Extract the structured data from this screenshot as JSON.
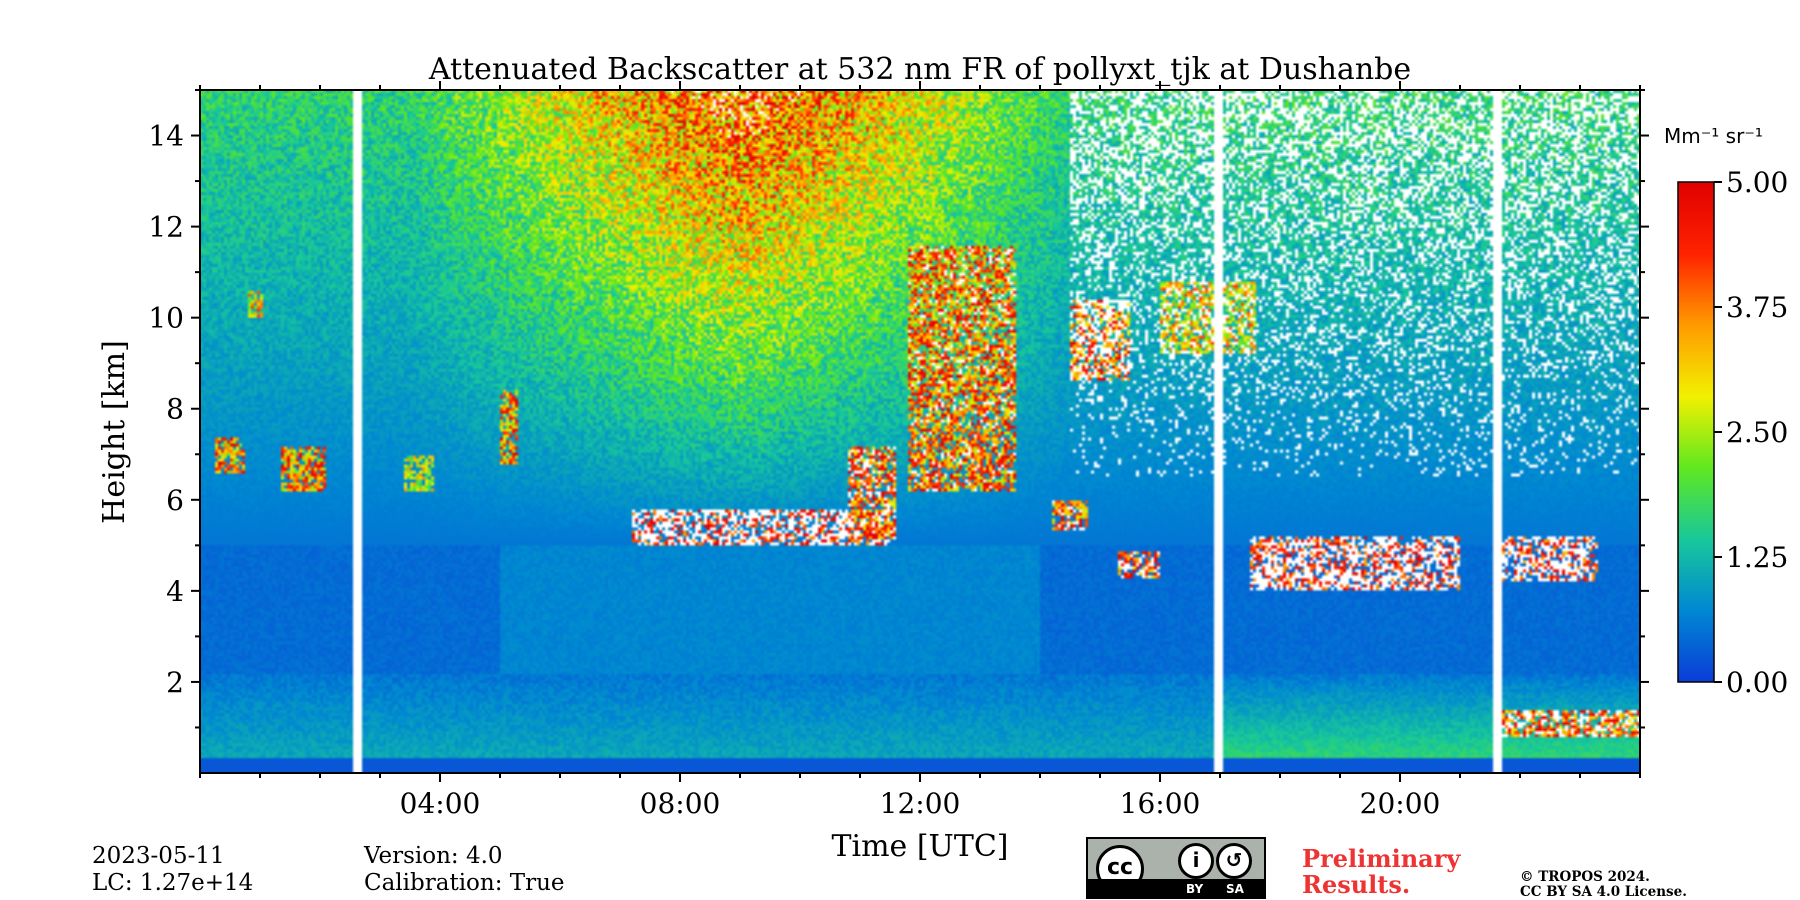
{
  "chart_data": {
    "type": "heatmap",
    "title": "Attenuated Backscatter at 532 nm FR of pollyxt_tjk at Dushanbe",
    "xlabel": "Time [UTC]",
    "ylabel": "Height [km]",
    "x_range_hours": [
      0,
      24
    ],
    "ylim_km": [
      0,
      15
    ],
    "x_ticks": [
      {
        "value": 4,
        "label": "04:00"
      },
      {
        "value": 8,
        "label": "08:00"
      },
      {
        "value": 12,
        "label": "12:00"
      },
      {
        "value": 16,
        "label": "16:00"
      },
      {
        "value": 20,
        "label": "20:00"
      }
    ],
    "y_ticks": [
      {
        "value": 2,
        "label": "2"
      },
      {
        "value": 4,
        "label": "4"
      },
      {
        "value": 6,
        "label": "6"
      },
      {
        "value": 8,
        "label": "8"
      },
      {
        "value": 10,
        "label": "10"
      },
      {
        "value": 12,
        "label": "12"
      },
      {
        "value": 14,
        "label": "14"
      }
    ],
    "colorbar": {
      "unit": "Mm⁻¹ sr⁻¹",
      "range": [
        0,
        5
      ],
      "ticks": [
        {
          "value": 0.0,
          "label": "0.00"
        },
        {
          "value": 1.25,
          "label": "1.25"
        },
        {
          "value": 2.5,
          "label": "2.50"
        },
        {
          "value": 3.75,
          "label": "3.75"
        },
        {
          "value": 5.0,
          "label": "5.00"
        }
      ],
      "colors": [
        "#0a3cd8",
        "#0088d2",
        "#18c89a",
        "#60e820",
        "#f2f000",
        "#ff9a00",
        "#ff2200",
        "#e00000"
      ]
    },
    "data_gaps_hours": [
      [
        2.55,
        2.72
      ],
      [
        16.9,
        17.05
      ],
      [
        21.55,
        21.7
      ]
    ],
    "cloud_layers": [
      {
        "start_h": 0.25,
        "end_h": 0.75,
        "base_km": 6.6,
        "top_km": 7.4,
        "value": 3.6
      },
      {
        "start_h": 1.35,
        "end_h": 2.1,
        "base_km": 6.2,
        "top_km": 7.2,
        "value": 3.6
      },
      {
        "start_h": 0.8,
        "end_h": 1.05,
        "base_km": 10.0,
        "top_km": 10.6,
        "value": 3.0
      },
      {
        "start_h": 3.4,
        "end_h": 3.9,
        "base_km": 6.2,
        "top_km": 7.0,
        "value": 2.6
      },
      {
        "start_h": 5.0,
        "end_h": 5.3,
        "base_km": 6.8,
        "top_km": 8.4,
        "value": 3.6
      },
      {
        "start_h": 7.2,
        "end_h": 11.5,
        "base_km": 5.0,
        "top_km": 5.8,
        "value": 5.8
      },
      {
        "start_h": 10.8,
        "end_h": 11.6,
        "base_km": 5.1,
        "top_km": 7.2,
        "value": 4.3
      },
      {
        "start_h": 11.8,
        "end_h": 13.6,
        "base_km": 6.2,
        "top_km": 11.6,
        "value": 4.0
      },
      {
        "start_h": 14.2,
        "end_h": 14.8,
        "base_km": 5.3,
        "top_km": 6.0,
        "value": 4.2
      },
      {
        "start_h": 14.5,
        "end_h": 15.5,
        "base_km": 8.6,
        "top_km": 10.4,
        "value": 4.4
      },
      {
        "start_h": 15.3,
        "end_h": 16.0,
        "base_km": 4.3,
        "top_km": 4.9,
        "value": 4.6
      },
      {
        "start_h": 16.0,
        "end_h": 17.6,
        "base_km": 9.2,
        "top_km": 10.8,
        "value": 3.0
      },
      {
        "start_h": 17.5,
        "end_h": 21.0,
        "base_km": 4.0,
        "top_km": 5.2,
        "value": 5.8
      },
      {
        "start_h": 21.7,
        "end_h": 23.3,
        "base_km": 4.2,
        "top_km": 5.2,
        "value": 5.5
      },
      {
        "start_h": 21.7,
        "end_h": 24.0,
        "base_km": 0.8,
        "top_km": 1.4,
        "value": 4.6
      }
    ]
  },
  "footer": {
    "date": "2023-05-11",
    "lc": "LC: 1.27e+14",
    "version": "Version: 4.0",
    "calibration": "Calibration: True",
    "preliminary_line1": "Preliminary",
    "preliminary_line2": "Results.",
    "copyright_line1": "© TROPOS 2024.",
    "copyright_line2": "CC BY SA 4.0 License.",
    "preliminary_color": "#ee3333"
  },
  "license_badge": {
    "cc": "cc",
    "by": "BY",
    "sa": "SA"
  }
}
